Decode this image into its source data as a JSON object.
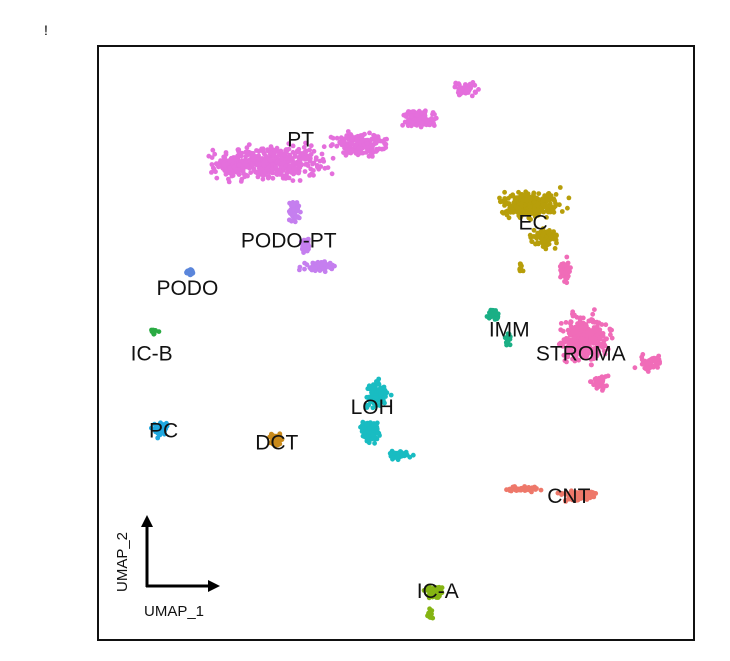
{
  "corner_mark": "!",
  "chart_data": {
    "type": "scatter",
    "title": "",
    "xlabel": "UMAP_1",
    "ylabel": "UMAP_2",
    "xlim": [
      0,
      100
    ],
    "ylim": [
      0,
      100
    ],
    "grid": false,
    "legend": "none",
    "clusters": [
      {
        "name": "PT",
        "color": "#e46fdc",
        "label_x": 34,
        "label_y": 84
      },
      {
        "name": "PODO-PT",
        "color": "#c57fef",
        "label_x": 32,
        "label_y": 67
      },
      {
        "name": "PODO",
        "color": "#5b86db",
        "label_x": 15,
        "label_y": 59
      },
      {
        "name": "IC-B",
        "color": "#2aab43",
        "label_x": 9,
        "label_y": 48
      },
      {
        "name": "PC",
        "color": "#20a8e0",
        "label_x": 11,
        "label_y": 35
      },
      {
        "name": "DCT",
        "color": "#c98a1b",
        "label_x": 30,
        "label_y": 33
      },
      {
        "name": "LOH",
        "color": "#19bcc2",
        "label_x": 46,
        "label_y": 39
      },
      {
        "name": "EC",
        "color": "#b79e0a",
        "label_x": 73,
        "label_y": 70
      },
      {
        "name": "IMM",
        "color": "#1aaf85",
        "label_x": 69,
        "label_y": 52
      },
      {
        "name": "STROMA",
        "color": "#f06cb8",
        "label_x": 81,
        "label_y": 48
      },
      {
        "name": "CNT",
        "color": "#ee786a",
        "label_x": 79,
        "label_y": 24
      },
      {
        "name": "IC-A",
        "color": "#85b413",
        "label_x": 57,
        "label_y": 8
      }
    ]
  }
}
